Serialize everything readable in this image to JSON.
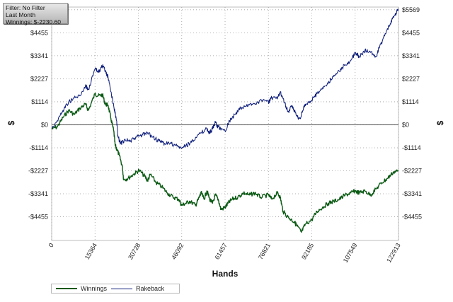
{
  "filter_box": {
    "line1": "Filter: No Filter",
    "line2": "Last Month",
    "line3": "Winnings: $-2230.60"
  },
  "chart_data": {
    "type": "line",
    "xlabel": "Hands",
    "ylabel": "$",
    "x_ticks": [
      0,
      15364,
      30728,
      46092,
      61457,
      76821,
      92185,
      107549,
      122913
    ],
    "x_tick_labels": [
      "0",
      "15364",
      "30728",
      "46092",
      "61457",
      "76821",
      "92185",
      "107549",
      "122913"
    ],
    "y_ticks": [
      -4455,
      -3341,
      -2227,
      -1114,
      0,
      1114,
      2227,
      3341,
      4455,
      5569
    ],
    "y_tick_labels": [
      "-$4455",
      "-$3341",
      "-$2227",
      "-$1114",
      "$0",
      "$1114",
      "$2227",
      "$3341",
      "$4455",
      "$5569"
    ],
    "xlim": [
      0,
      122913
    ],
    "ylim": [
      -5600,
      5700
    ],
    "grid": true,
    "legend_position": "bottom-left",
    "series": [
      {
        "name": "Winnings",
        "color": "#0b5a14",
        "points": [
          [
            0,
            -200
          ],
          [
            2000,
            -100
          ],
          [
            4000,
            350
          ],
          [
            6000,
            700
          ],
          [
            8000,
            500
          ],
          [
            10000,
            800
          ],
          [
            12000,
            1000
          ],
          [
            13000,
            700
          ],
          [
            15364,
            1500
          ],
          [
            16500,
            1400
          ],
          [
            18000,
            1450
          ],
          [
            19000,
            1000
          ],
          [
            20000,
            950
          ],
          [
            21000,
            300
          ],
          [
            22000,
            -300
          ],
          [
            22500,
            -1000
          ],
          [
            23000,
            -1150
          ],
          [
            24000,
            -1500
          ],
          [
            25000,
            -2000
          ],
          [
            25500,
            -2650
          ],
          [
            27000,
            -2600
          ],
          [
            29000,
            -2400
          ],
          [
            31000,
            -2200
          ],
          [
            33000,
            -2500
          ],
          [
            34000,
            -2700
          ],
          [
            35000,
            -2400
          ],
          [
            37000,
            -2800
          ],
          [
            39000,
            -3000
          ],
          [
            41000,
            -3300
          ],
          [
            43000,
            -3500
          ],
          [
            45000,
            -3600
          ],
          [
            46092,
            -3900
          ],
          [
            47500,
            -3800
          ],
          [
            49000,
            -3700
          ],
          [
            51000,
            -3900
          ],
          [
            52000,
            -3600
          ],
          [
            53000,
            -3300
          ],
          [
            54000,
            -3600
          ],
          [
            55000,
            -3200
          ],
          [
            56000,
            -3600
          ],
          [
            57000,
            -3800
          ],
          [
            58000,
            -3400
          ],
          [
            59000,
            -3600
          ],
          [
            60000,
            -4100
          ],
          [
            61457,
            -4000
          ],
          [
            62500,
            -3800
          ],
          [
            64000,
            -3600
          ],
          [
            66000,
            -3500
          ],
          [
            68000,
            -3300
          ],
          [
            70000,
            -3400
          ],
          [
            72000,
            -3300
          ],
          [
            74000,
            -3500
          ],
          [
            76821,
            -3400
          ],
          [
            78000,
            -3600
          ],
          [
            80000,
            -3300
          ],
          [
            81000,
            -3500
          ],
          [
            82000,
            -4200
          ],
          [
            84000,
            -4500
          ],
          [
            86000,
            -4700
          ],
          [
            87000,
            -4900
          ],
          [
            88500,
            -5200
          ],
          [
            90000,
            -4800
          ],
          [
            92185,
            -4600
          ],
          [
            94000,
            -4200
          ],
          [
            96000,
            -4000
          ],
          [
            98000,
            -3800
          ],
          [
            100000,
            -3700
          ],
          [
            102000,
            -3600
          ],
          [
            104000,
            -3400
          ],
          [
            106000,
            -3300
          ],
          [
            107549,
            -3200
          ],
          [
            109000,
            -3300
          ],
          [
            111000,
            -3200
          ],
          [
            113000,
            -3400
          ],
          [
            115000,
            -3100
          ],
          [
            117000,
            -2800
          ],
          [
            119000,
            -2600
          ],
          [
            121000,
            -2300
          ],
          [
            122913,
            -2230.6
          ]
        ]
      },
      {
        "name": "Rakeback",
        "color": "#0a1a78",
        "points": [
          [
            0,
            -150
          ],
          [
            2000,
            200
          ],
          [
            4000,
            700
          ],
          [
            6000,
            1100
          ],
          [
            8000,
            1300
          ],
          [
            10000,
            1400
          ],
          [
            12000,
            1900
          ],
          [
            13000,
            1700
          ],
          [
            15364,
            2700
          ],
          [
            16500,
            2550
          ],
          [
            18000,
            2850
          ],
          [
            19000,
            2600
          ],
          [
            20000,
            2300
          ],
          [
            21000,
            1600
          ],
          [
            22000,
            900
          ],
          [
            23000,
            200
          ],
          [
            23500,
            -600
          ],
          [
            24500,
            -900
          ],
          [
            26000,
            -700
          ],
          [
            28000,
            -800
          ],
          [
            30000,
            -600
          ],
          [
            32000,
            -500
          ],
          [
            34000,
            -400
          ],
          [
            36000,
            -600
          ],
          [
            38000,
            -800
          ],
          [
            40000,
            -900
          ],
          [
            42000,
            -900
          ],
          [
            44000,
            -1000
          ],
          [
            46092,
            -1150
          ],
          [
            47500,
            -1000
          ],
          [
            49000,
            -900
          ],
          [
            51000,
            -600
          ],
          [
            53000,
            -400
          ],
          [
            55000,
            -200
          ],
          [
            56000,
            -400
          ],
          [
            57000,
            -200
          ],
          [
            58000,
            100
          ],
          [
            59000,
            -100
          ],
          [
            61457,
            -300
          ],
          [
            63000,
            200
          ],
          [
            65000,
            500
          ],
          [
            67000,
            800
          ],
          [
            69000,
            900
          ],
          [
            71000,
            1000
          ],
          [
            73000,
            1100
          ],
          [
            75000,
            1200
          ],
          [
            76821,
            1100
          ],
          [
            78000,
            1300
          ],
          [
            80000,
            1250
          ],
          [
            81000,
            1600
          ],
          [
            82000,
            1300
          ],
          [
            83000,
            900
          ],
          [
            84000,
            600
          ],
          [
            85000,
            900
          ],
          [
            86000,
            700
          ],
          [
            87000,
            400
          ],
          [
            88000,
            300
          ],
          [
            89000,
            700
          ],
          [
            90000,
            1000
          ],
          [
            92185,
            1200
          ],
          [
            94000,
            1500
          ],
          [
            96000,
            1800
          ],
          [
            98000,
            2000
          ],
          [
            100000,
            2400
          ],
          [
            102000,
            2600
          ],
          [
            104000,
            2900
          ],
          [
            106000,
            3100
          ],
          [
            107549,
            3500
          ],
          [
            109000,
            3300
          ],
          [
            111000,
            3600
          ],
          [
            113000,
            3500
          ],
          [
            115000,
            3300
          ],
          [
            116000,
            3700
          ],
          [
            118000,
            4300
          ],
          [
            120000,
            4900
          ],
          [
            121500,
            5300
          ],
          [
            122913,
            5600
          ]
        ]
      }
    ]
  }
}
